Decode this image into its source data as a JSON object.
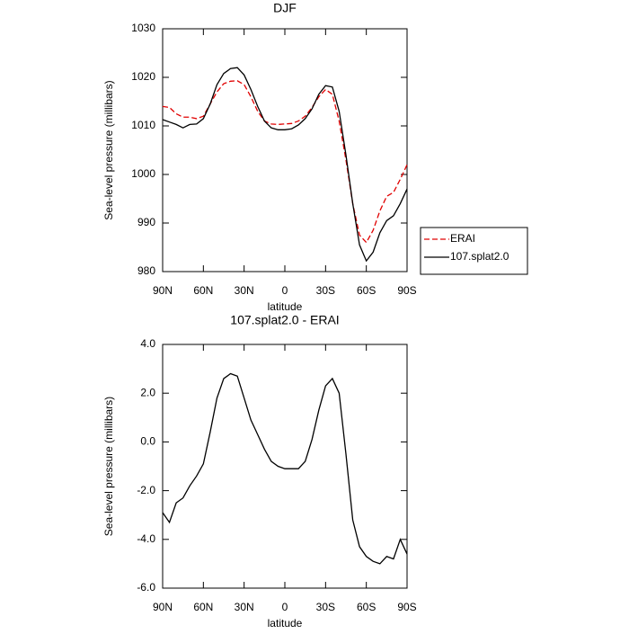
{
  "chart_data": [
    {
      "type": "line",
      "title": "DJF",
      "xlabel": "latitude",
      "ylabel": "Sea-level pressure (millibars)",
      "x": [
        90,
        85,
        80,
        75,
        70,
        65,
        60,
        55,
        50,
        45,
        40,
        35,
        30,
        25,
        20,
        15,
        10,
        5,
        0,
        -5,
        -10,
        -15,
        -20,
        -25,
        -30,
        -35,
        -40,
        -45,
        -50,
        -55,
        -60,
        -65,
        -70,
        -75,
        -80,
        -85,
        -90
      ],
      "series": [
        {
          "name": "ERAI",
          "color": "#e00000",
          "dash": true,
          "values": [
            1014,
            1013.8,
            1012.5,
            1011.8,
            1011.8,
            1011.5,
            1012,
            1014.5,
            1017,
            1018.7,
            1019.2,
            1019.3,
            1018.5,
            1016,
            1013,
            1011,
            1010.4,
            1010.3,
            1010.4,
            1010.5,
            1011,
            1012,
            1013.8,
            1016,
            1017.5,
            1016.5,
            1011,
            1003,
            994,
            987.5,
            986,
            988.5,
            992.5,
            995.5,
            996.3,
            999,
            1002
          ]
        },
        {
          "name": "107.splat2.0",
          "color": "#000000",
          "dash": false,
          "values": [
            1011.3,
            1010.8,
            1010.3,
            1009.6,
            1010.3,
            1010.4,
            1011.5,
            1014.5,
            1018.5,
            1020.8,
            1021.8,
            1022,
            1020.5,
            1017.5,
            1014,
            1011,
            1009.6,
            1009.2,
            1009.2,
            1009.4,
            1010.2,
            1011.5,
            1013.5,
            1016.5,
            1018.3,
            1018,
            1013,
            1004,
            994,
            985.5,
            982.2,
            984,
            988,
            990.5,
            991.5,
            994,
            997
          ]
        }
      ],
      "xlim": [
        90,
        -90
      ],
      "xticks": [
        {
          "value": 90,
          "label": "90N"
        },
        {
          "value": 60,
          "label": "60N"
        },
        {
          "value": 30,
          "label": "30N"
        },
        0,
        {
          "value": -30,
          "label": "30S"
        },
        {
          "value": -60,
          "label": "60S"
        },
        {
          "value": -90,
          "label": "90S"
        }
      ],
      "ylim": [
        980,
        1030
      ],
      "yticks": [
        980,
        990,
        1000,
        1010,
        1020,
        1030
      ],
      "legend": "right"
    },
    {
      "type": "line",
      "title": "107.splat2.0 - ERAI",
      "xlabel": "latitude",
      "ylabel": "Sea-level pressure (millibars)",
      "x": [
        90,
        85,
        80,
        75,
        70,
        65,
        60,
        55,
        50,
        45,
        40,
        35,
        30,
        25,
        20,
        15,
        10,
        5,
        0,
        -5,
        -10,
        -15,
        -20,
        -25,
        -30,
        -35,
        -40,
        -45,
        -50,
        -55,
        -60,
        -65,
        -70,
        -75,
        -80,
        -85,
        -90
      ],
      "series": [
        {
          "color": "#000000",
          "dash": false,
          "values": [
            -2.9,
            -3.3,
            -2.5,
            -2.3,
            -1.8,
            -1.4,
            -0.9,
            0.4,
            1.8,
            2.6,
            2.8,
            2.7,
            1.8,
            0.9,
            0.3,
            -0.3,
            -0.8,
            -1,
            -1.1,
            -1.1,
            -1.1,
            -0.8,
            0.1,
            1.3,
            2.3,
            2.6,
            2,
            -0.5,
            -3.2,
            -4.3,
            -4.7,
            -4.9,
            -5,
            -4.7,
            -4.8,
            -4,
            -4.6
          ]
        }
      ],
      "xlim": [
        90,
        -90
      ],
      "xticks": [
        {
          "value": 90,
          "label": "90N"
        },
        {
          "value": 60,
          "label": "60N"
        },
        {
          "value": 30,
          "label": "30N"
        },
        0,
        {
          "value": -30,
          "label": "30S"
        },
        {
          "value": -60,
          "label": "60S"
        },
        {
          "value": -90,
          "label": "90S"
        }
      ],
      "ylim": [
        -6,
        4
      ],
      "yticks": [
        {
          "value": -6,
          "label": "-6.0"
        },
        {
          "value": -4,
          "label": "-4.0"
        },
        {
          "value": -2,
          "label": "-2.0"
        },
        {
          "value": 0,
          "label": "0.0"
        },
        {
          "value": 2,
          "label": "2.0"
        },
        {
          "value": 4,
          "label": "4.0"
        }
      ]
    }
  ]
}
